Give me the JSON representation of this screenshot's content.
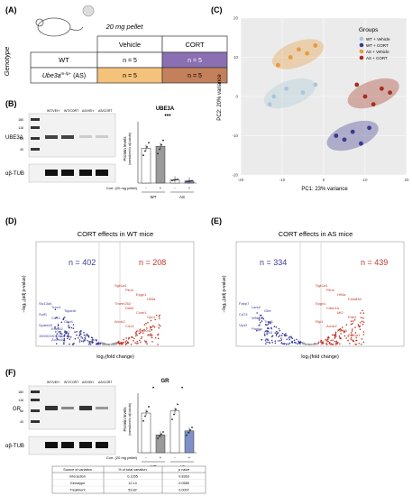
{
  "panels": {
    "A": {
      "label": "(A)",
      "pellet_header": "20 mg pellet",
      "col_vehicle": "Vehicle",
      "col_cort": "CORT",
      "row_title": "Genotype",
      "row_wt": "WT",
      "row_as": "Ube3a",
      "row_as_sup": "m-/p+",
      "row_as_suffix": " (AS)",
      "cells": [
        "n = 5",
        "n = 5",
        "n = 5",
        "n = 5"
      ],
      "colors": {
        "wt_vehicle": "#ffffff",
        "wt_cort": "#8a6fb3",
        "as_vehicle": "#f4c27a",
        "as_cort": "#c4805a"
      }
    },
    "B": {
      "label": "(B)",
      "lanes": [
        "WT/VEH",
        "WT/CORT",
        "AS/VEH",
        "AS/CORT"
      ],
      "ladder": [
        "180",
        "116",
        "66",
        "40"
      ],
      "band_top": "UBE3A",
      "band_bottom": "αβ-TUB",
      "chart_title": "UBE3A",
      "ylabel": "Protein levels",
      "ylabel2": "(normalized to αβ-tubulin)",
      "sig": "•••",
      "cort_label": "Cort. (20 mg pellet)",
      "cort_marks": [
        "-",
        "+",
        "-",
        "+"
      ],
      "groups": [
        "WT",
        "AS"
      ]
    },
    "C": {
      "label": "(C)",
      "legend_title": "Groups",
      "legend": [
        {
          "name": "WT + Vehicle",
          "color": "#a8c8d8"
        },
        {
          "name": "WT + CORT",
          "color": "#3a3a8c"
        },
        {
          "name": "AS + Vehicle",
          "color": "#e89a3c"
        },
        {
          "name": "AS + CORT",
          "color": "#a3301f"
        }
      ],
      "xlabel": "PC1: 23% variance",
      "ylabel": "PC2: 20% variance"
    },
    "D": {
      "label": "(D)",
      "title": "CORT effects in WT mice",
      "n_down": "n = 402",
      "n_up": "n = 208",
      "xlabel": "log₂(fold change)",
      "ylabel": "−log₁₀(adj p-value)",
      "genes_up": [
        "Sgk1a1",
        "Plin4",
        "Epgn1",
        "Hif3a",
        "Tmem252",
        "Ddit4",
        "Ccnb1",
        "Gpr4",
        "Arrdc2",
        "Cd14",
        "Atp6v0d2",
        "Klf9"
      ],
      "genes_down": [
        "Slc13a4",
        "Trpv4",
        "Tspan8",
        "Sulf1",
        "Cd74",
        "Gbp4",
        "Spata18",
        "Entpd2",
        "Tlr7",
        "1500015O10Rik",
        "Zcchc5"
      ]
    },
    "E": {
      "label": "(E)",
      "title": "CORT effects in AS mice",
      "n_down": "n = 334",
      "n_up": "n = 439",
      "xlabel": "log₂(fold change)",
      "ylabel": "−log₁₀(adj p-value)",
      "genes_up": [
        "Sgk1a1",
        "Plin4",
        "Hif3a",
        "Fam83d",
        "Epgn1",
        "Cdkn1a",
        "Mt2",
        "Pdk4",
        "Rtp1",
        "Arrdc2",
        "Fkbp5",
        "Sult1a1"
      ],
      "genes_down": [
        "Fabp7",
        "Lars2",
        "Glrb",
        "Cd74",
        "Wfdc18",
        "Tnni1",
        "Vipr2",
        "Pappa",
        "Dkk3"
      ]
    },
    "F": {
      "label": "(F)",
      "lanes": [
        "WT/VEH",
        "WT/CORT",
        "AS/VEH",
        "AS/CORT"
      ],
      "ladder": [
        "180",
        "116",
        "66",
        "40"
      ],
      "band_top": "GR",
      "band_bottom": "αβ-TUB",
      "chart_title": "GR",
      "ylabel": "Protein levels",
      "ylabel2": "(normalized to αβ-tubulin)",
      "cort_label": "Cort. (20 mg pellet)",
      "cort_marks": [
        "-",
        "+",
        "-",
        "+"
      ],
      "groups": [
        "WT",
        "AS"
      ],
      "table": {
        "headers": [
          "Source of variation",
          "% of total variation",
          "p value"
        ],
        "rows": [
          [
            "Interaction",
            "0.1265",
            "0.8363"
          ],
          [
            "Genotype",
            "12.14",
            "0.0580"
          ],
          [
            "Treatment",
            "53.82",
            "0.0007"
          ]
        ]
      }
    }
  },
  "chart_data": [
    {
      "type": "bar",
      "title": "UBE3A",
      "categories": [
        "WT -",
        "WT +",
        "AS -",
        "AS +"
      ],
      "values": [
        0.85,
        0.9,
        0.08,
        0.05
      ],
      "ylim": [
        0,
        1.5
      ]
    },
    {
      "type": "scatter",
      "xlabel": "PC1: 23% variance",
      "ylabel": "PC2: 20% variance",
      "xlim": [
        -20,
        20
      ],
      "ylim": [
        -20,
        20
      ],
      "series": [
        {
          "name": "WT + Vehicle",
          "x": [
            -13,
            -12,
            -9,
            -5,
            -2
          ],
          "y": [
            -2,
            0,
            2,
            1,
            3
          ]
        },
        {
          "name": "WT + CORT",
          "x": [
            3,
            5,
            7,
            9,
            11
          ],
          "y": [
            -10,
            -11,
            -9,
            -12,
            -8
          ]
        },
        {
          "name": "AS + Vehicle",
          "x": [
            -11,
            -8,
            -6,
            -4,
            -2
          ],
          "y": [
            8,
            10,
            12,
            11,
            13
          ]
        },
        {
          "name": "AS + CORT",
          "x": [
            8,
            10,
            12,
            14,
            16
          ],
          "y": [
            3,
            0,
            -2,
            2,
            1
          ]
        }
      ]
    },
    {
      "type": "bar",
      "title": "GR",
      "categories": [
        "WT -",
        "WT +",
        "AS -",
        "AS +"
      ],
      "values": [
        1.0,
        0.45,
        1.05,
        0.55
      ],
      "ylim": [
        0,
        1.5
      ]
    }
  ]
}
